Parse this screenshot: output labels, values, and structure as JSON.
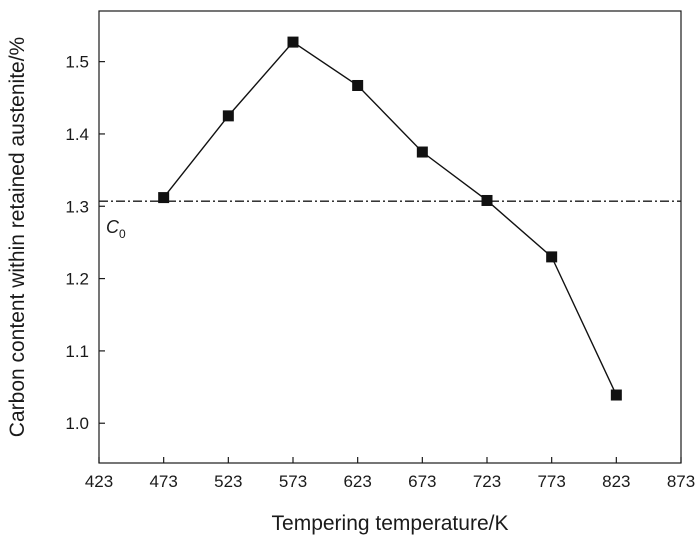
{
  "chart_data": {
    "type": "line",
    "xlabel": "Tempering temperature/K",
    "ylabel": "Carbon content within retained austenite/%",
    "xlim": [
      423,
      873
    ],
    "ylim": [
      0.945,
      1.57
    ],
    "x_ticks": [
      423,
      473,
      523,
      573,
      623,
      673,
      723,
      773,
      823,
      873
    ],
    "y_ticks": [
      1.0,
      1.1,
      1.2,
      1.3,
      1.4,
      1.5
    ],
    "x_tick_labels": [
      "423",
      "473",
      "523",
      "573",
      "623",
      "673",
      "723",
      "773",
      "823",
      "873"
    ],
    "y_tick_labels": [
      "1.0",
      "1.1",
      "1.2",
      "1.3",
      "1.4",
      "1.5"
    ],
    "series": [
      {
        "marker": "square",
        "color": "#111111",
        "x": [
          473,
          523,
          573,
          623,
          673,
          723,
          773,
          823
        ],
        "y": [
          1.312,
          1.425,
          1.527,
          1.467,
          1.375,
          1.308,
          1.23,
          1.039
        ]
      }
    ],
    "reference_line": {
      "style": "dash-dot",
      "y": 1.307,
      "label_main": "C",
      "label_sub": "0"
    },
    "grid": false,
    "legend": "none"
  }
}
